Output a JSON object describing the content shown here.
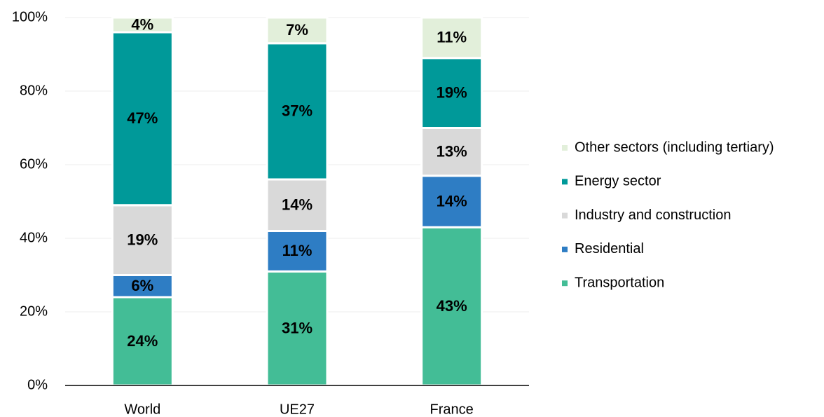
{
  "chart_data": {
    "type": "stacked_bar",
    "categories": [
      "World",
      "UE27",
      "France"
    ],
    "series": [
      {
        "name": "Transportation",
        "color": "#43bd96",
        "values": [
          24,
          31,
          43
        ],
        "value_labels": [
          "24%",
          "31%",
          "43%"
        ]
      },
      {
        "name": "Residential",
        "color": "#2e7dc4",
        "values": [
          6,
          11,
          14
        ],
        "value_labels": [
          "6%",
          "11%",
          "14%"
        ]
      },
      {
        "name": "Industry and construction",
        "color": "#d9d9d9",
        "values": [
          19,
          14,
          13
        ],
        "value_labels": [
          "19%",
          "14%",
          "13%"
        ]
      },
      {
        "name": "Energy sector",
        "color": "#009999",
        "values": [
          47,
          37,
          19
        ],
        "value_labels": [
          "47%",
          "37%",
          "19%"
        ]
      },
      {
        "name": "Other sectors (including tertiary)",
        "color": "#e2efda",
        "values": [
          4,
          7,
          11
        ],
        "value_labels": [
          "4%",
          "7%",
          "11%"
        ]
      }
    ],
    "ylim": [
      0,
      100
    ],
    "yticks": [
      {
        "value": 0,
        "label": "0%"
      },
      {
        "value": 20,
        "label": "20%"
      },
      {
        "value": 40,
        "label": "40%"
      },
      {
        "value": 60,
        "label": "60%"
      },
      {
        "value": 80,
        "label": "80%"
      },
      {
        "value": 100,
        "label": "100%"
      }
    ],
    "grid": true,
    "legend": "right"
  }
}
